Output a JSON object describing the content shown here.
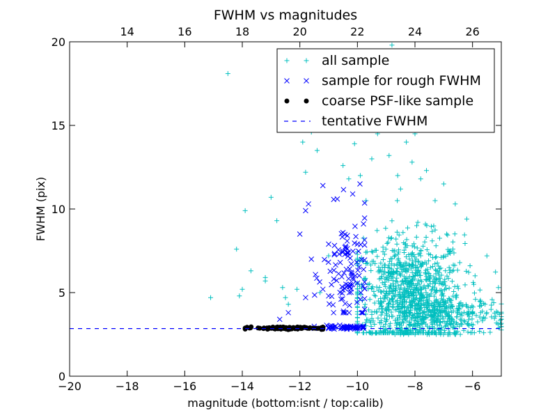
{
  "chart_data": {
    "type": "scatter",
    "title": "FWHM vs magnitudes",
    "xlabel": "magnitude (bottom:isnt / top:calib)",
    "ylabel": "FWHM (pix)",
    "xlim": [
      -20,
      -5
    ],
    "ylim": [
      0,
      20
    ],
    "xticks": [
      -20,
      -18,
      -16,
      -14,
      -12,
      -10,
      -8,
      -6
    ],
    "xtick_labels": [
      "−20",
      "−18",
      "−16",
      "−14",
      "−12",
      "−10",
      "−8",
      "−6"
    ],
    "yticks": [
      0,
      5,
      10,
      15,
      20
    ],
    "ytick_labels": [
      "0",
      "5",
      "10",
      "15",
      "20"
    ],
    "top_xlim": [
      12,
      27
    ],
    "top_xticks": [
      14,
      16,
      18,
      20,
      22,
      24,
      26
    ],
    "top_xtick_labels": [
      "14",
      "16",
      "18",
      "20",
      "22",
      "24",
      "26"
    ],
    "grid": false,
    "legend_placement": "top-right",
    "legend_entries": [
      "all sample",
      "sample for rough FWHM",
      "coarse PSF-like sample",
      "tentative FWHM"
    ],
    "tentative_fwhm": 2.85,
    "series": [
      {
        "name": "all sample",
        "marker": "plus",
        "color": "#00bfbf",
        "points": [
          [
            -15.1,
            4.7
          ],
          [
            -14.5,
            18.1
          ],
          [
            -14.2,
            7.6
          ],
          [
            -14.1,
            4.8
          ],
          [
            -14.0,
            5.2
          ],
          [
            -13.9,
            9.9
          ],
          [
            -13.7,
            6.3
          ],
          [
            -13.2,
            5.7
          ],
          [
            -13.2,
            5.9
          ],
          [
            -13.0,
            10.7
          ],
          [
            -12.8,
            9.3
          ],
          [
            -12.6,
            5.3
          ],
          [
            -12.5,
            4.7
          ],
          [
            -12.4,
            4.3
          ],
          [
            -12.1,
            5.2
          ],
          [
            -11.9,
            14.0
          ],
          [
            -11.8,
            12.2
          ],
          [
            -11.6,
            14.6
          ],
          [
            -11.4,
            13.5
          ],
          [
            -11.3,
            5.0
          ],
          [
            -11.0,
            7.2
          ],
          [
            -10.8,
            15.9
          ],
          [
            -10.5,
            12.6
          ],
          [
            -10.3,
            11.8
          ],
          [
            -10.1,
            13.9
          ],
          [
            -9.9,
            12.0
          ],
          [
            -9.7,
            10.5
          ],
          [
            -9.5,
            13.0
          ],
          [
            -9.3,
            14.5
          ],
          [
            -9.2,
            16.0
          ],
          [
            -9.0,
            15.8
          ],
          [
            -8.9,
            13.2
          ],
          [
            -8.8,
            19.8
          ],
          [
            -8.6,
            12.0
          ],
          [
            -8.5,
            11.2
          ],
          [
            -8.3,
            14.0
          ],
          [
            -8.1,
            12.8
          ],
          [
            -8.0,
            14.5
          ],
          [
            -7.8,
            11.8
          ],
          [
            -7.6,
            12.3
          ],
          [
            -7.3,
            10.5
          ],
          [
            -7.0,
            11.5
          ],
          [
            -6.9,
            8.5
          ],
          [
            -6.6,
            10.3
          ],
          [
            -6.2,
            9.4
          ],
          [
            -5.5,
            7.2
          ],
          [
            -5.1,
            5.3
          ]
        ],
        "clusters": [
          {
            "x": -8.2,
            "y": 4.8,
            "sx": 0.95,
            "sy": 1.8,
            "n": 950,
            "xmin": -10.0,
            "xmax": -5.0,
            "ymin": 2.6,
            "ymax": 10.5
          },
          {
            "x": -7.0,
            "y": 3.6,
            "sx": 1.1,
            "sy": 0.6,
            "n": 300,
            "xmin": -9.5,
            "xmax": -5.0,
            "ymin": 2.5,
            "ymax": 6.0
          }
        ]
      },
      {
        "name": "sample for rough FWHM",
        "marker": "x",
        "color": "#0000ff",
        "points": [
          [
            -12.7,
            3.4
          ],
          [
            -12.0,
            8.5
          ],
          [
            -11.8,
            9.9
          ],
          [
            -11.7,
            10.3
          ],
          [
            -11.6,
            7.0
          ],
          [
            -11.2,
            11.4
          ],
          [
            -11.2,
            5.2
          ],
          [
            -11.0,
            4.8
          ],
          [
            -11.0,
            7.9
          ],
          [
            -10.7,
            10.6
          ],
          [
            -10.4,
            5.5
          ],
          [
            -10.0,
            7.9
          ],
          [
            -9.9,
            4.6
          ],
          [
            -12.4,
            3.8
          ],
          [
            -11.8,
            4.7
          ]
        ],
        "clusters": [
          {
            "x": -10.3,
            "y": 6.0,
            "sx": 0.45,
            "sy": 1.9,
            "n": 110,
            "xmin": -11.5,
            "xmax": -9.75,
            "ymin": 3.8,
            "ymax": 11.5
          },
          {
            "x": -10.4,
            "y": 2.92,
            "sx": 0.45,
            "sy": 0.05,
            "n": 60,
            "xmin": -11.5,
            "xmax": -9.8,
            "ymin": 2.8,
            "ymax": 3.1
          }
        ]
      },
      {
        "name": "coarse PSF-like sample",
        "marker": "dot",
        "color": "#000000",
        "points": [],
        "clusters": [
          {
            "x": -12.5,
            "y": 2.88,
            "sx": 0.75,
            "sy": 0.04,
            "n": 90,
            "xmin": -13.9,
            "xmax": -11.2,
            "ymin": 2.75,
            "ymax": 3.0
          }
        ]
      }
    ]
  }
}
